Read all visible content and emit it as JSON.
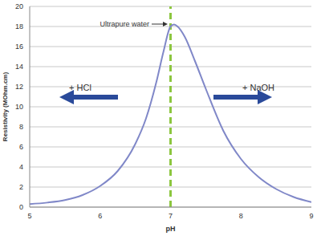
{
  "chart_data": {
    "type": "line",
    "x_label": "pH",
    "y_label": "Resistivity (MOhm.cm)",
    "x": [
      5,
      5.25,
      5.5,
      5.75,
      6,
      6.25,
      6.5,
      6.65,
      6.8,
      6.9,
      7,
      7.05,
      7.1,
      7.2,
      7.35,
      7.5,
      7.75,
      8,
      8.25,
      8.5,
      8.75,
      9
    ],
    "values": [
      0.3,
      0.45,
      0.7,
      1.2,
      2.1,
      3.6,
      6.3,
      8.8,
      12.5,
      15.5,
      18.0,
      18.2,
      18.0,
      17.0,
      14.5,
      11.8,
      7.6,
      4.8,
      3.0,
      1.8,
      1.0,
      0.5
    ],
    "color": "#8088c8",
    "line_style": "solid",
    "xlim": [
      5,
      9
    ],
    "xticks": [
      5,
      6,
      7,
      8,
      9
    ],
    "ylim": [
      0,
      20
    ],
    "yticks": [
      0,
      2,
      4,
      6,
      8,
      10,
      12,
      14,
      16,
      18,
      20
    ],
    "grid": true,
    "reference_lines": [
      {
        "x": 7,
        "color": "#8cc63f",
        "line_style": "dashed"
      }
    ],
    "annotations": [
      "Ultrapure water",
      "+ HCl",
      "+ NaOH"
    ]
  }
}
